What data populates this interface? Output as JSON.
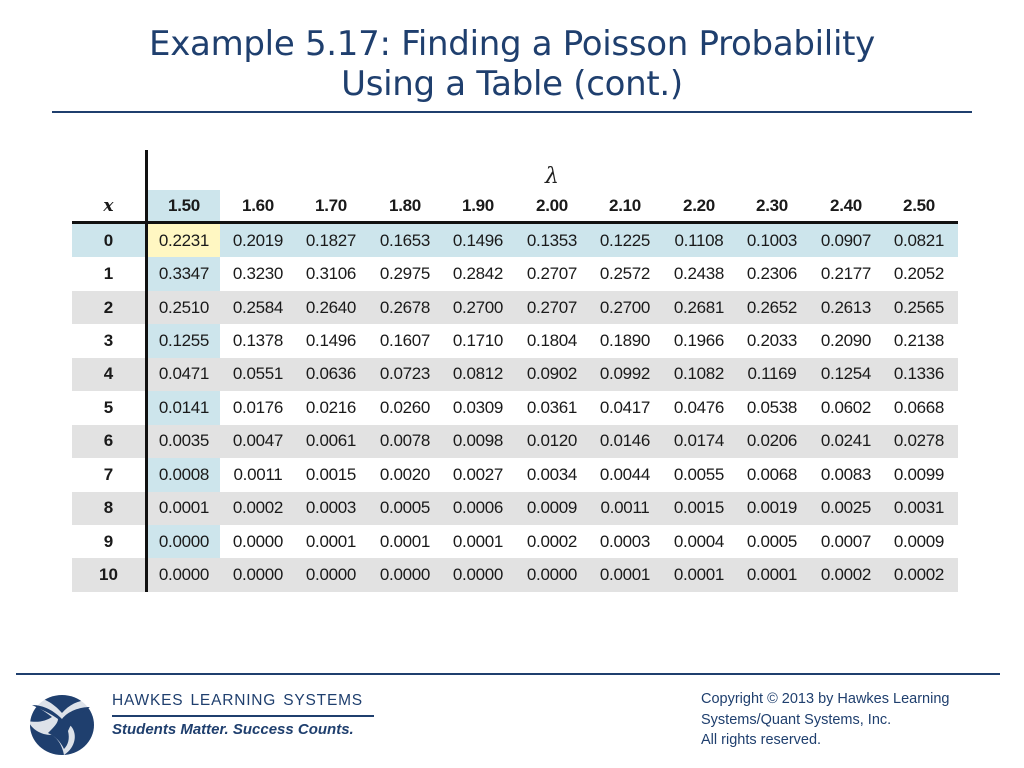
{
  "slide": {
    "title_line1": "Example 5.17: Finding a Poisson Probability",
    "title_line2": "Using a Table (cont.)"
  },
  "table": {
    "lambda_symbol": "λ",
    "x_header": "x",
    "lambda_values": [
      "1.50",
      "1.60",
      "1.70",
      "1.80",
      "1.90",
      "2.00",
      "2.10",
      "2.20",
      "2.30",
      "2.40",
      "2.50"
    ],
    "rows": [
      {
        "x": "0",
        "values": [
          "0.2231",
          "0.2019",
          "0.1827",
          "0.1653",
          "0.1496",
          "0.1353",
          "0.1225",
          "0.1108",
          "0.1003",
          "0.0907",
          "0.0821"
        ]
      },
      {
        "x": "1",
        "values": [
          "0.3347",
          "0.3230",
          "0.3106",
          "0.2975",
          "0.2842",
          "0.2707",
          "0.2572",
          "0.2438",
          "0.2306",
          "0.2177",
          "0.2052"
        ]
      },
      {
        "x": "2",
        "values": [
          "0.2510",
          "0.2584",
          "0.2640",
          "0.2678",
          "0.2700",
          "0.2707",
          "0.2700",
          "0.2681",
          "0.2652",
          "0.2613",
          "0.2565"
        ]
      },
      {
        "x": "3",
        "values": [
          "0.1255",
          "0.1378",
          "0.1496",
          "0.1607",
          "0.1710",
          "0.1804",
          "0.1890",
          "0.1966",
          "0.2033",
          "0.2090",
          "0.2138"
        ]
      },
      {
        "x": "4",
        "values": [
          "0.0471",
          "0.0551",
          "0.0636",
          "0.0723",
          "0.0812",
          "0.0902",
          "0.0992",
          "0.1082",
          "0.1169",
          "0.1254",
          "0.1336"
        ]
      },
      {
        "x": "5",
        "values": [
          "0.0141",
          "0.0176",
          "0.0216",
          "0.0260",
          "0.0309",
          "0.0361",
          "0.0417",
          "0.0476",
          "0.0538",
          "0.0602",
          "0.0668"
        ]
      },
      {
        "x": "6",
        "values": [
          "0.0035",
          "0.0047",
          "0.0061",
          "0.0078",
          "0.0098",
          "0.0120",
          "0.0146",
          "0.0174",
          "0.0206",
          "0.0241",
          "0.0278"
        ]
      },
      {
        "x": "7",
        "values": [
          "0.0008",
          "0.0011",
          "0.0015",
          "0.0020",
          "0.0027",
          "0.0034",
          "0.0044",
          "0.0055",
          "0.0068",
          "0.0083",
          "0.0099"
        ]
      },
      {
        "x": "8",
        "values": [
          "0.0001",
          "0.0002",
          "0.0003",
          "0.0005",
          "0.0006",
          "0.0009",
          "0.0011",
          "0.0015",
          "0.0019",
          "0.0025",
          "0.0031"
        ]
      },
      {
        "x": "9",
        "values": [
          "0.0000",
          "0.0000",
          "0.0001",
          "0.0001",
          "0.0001",
          "0.0002",
          "0.0003",
          "0.0004",
          "0.0005",
          "0.0007",
          "0.0009"
        ]
      },
      {
        "x": "10",
        "values": [
          "0.0000",
          "0.0000",
          "0.0000",
          "0.0000",
          "0.0000",
          "0.0000",
          "0.0001",
          "0.0001",
          "0.0001",
          "0.0002",
          "0.0002"
        ]
      }
    ],
    "colors": {
      "highlight_column": "#cde5ec",
      "highlight_cell": "#fff7c2",
      "band": "#e2e2e2"
    }
  },
  "footer": {
    "logo_icon": "eagle-logo-icon",
    "brand_name": "HAWKES  LEARNING  SYSTEMS",
    "tagline": "Students Matter. Success Counts.",
    "copyright_lines": [
      "Copyright © 2013 by Hawkes Learning",
      "Systems/Quant Systems, Inc.",
      "All rights reserved."
    ]
  },
  "colors": {
    "accent": "#1f3f6e"
  }
}
